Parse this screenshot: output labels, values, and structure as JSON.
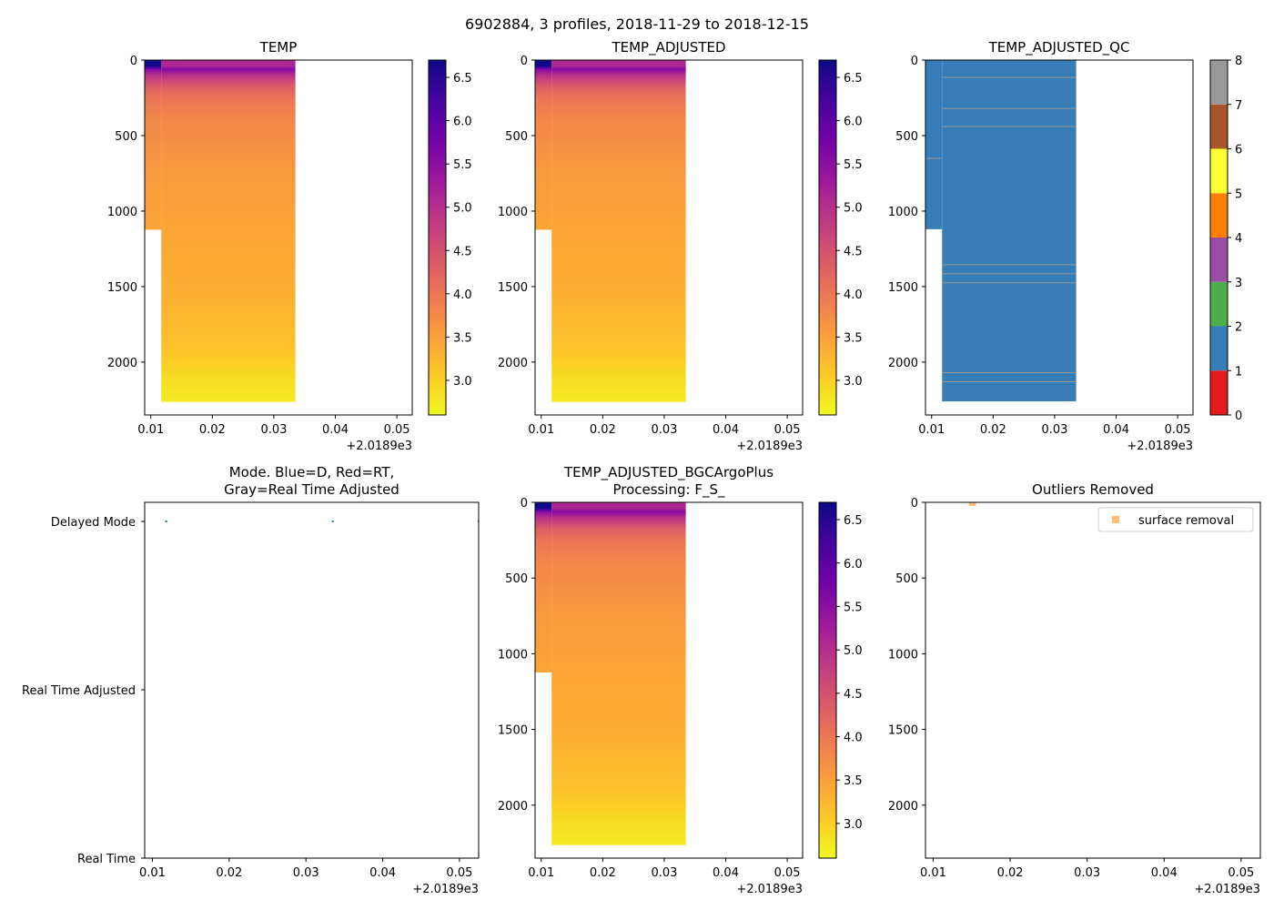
{
  "figure": {
    "title": "6902884, 3 profiles, 2018-11-29 to 2018-12-15"
  },
  "colors": {
    "plasma_stops": [
      "#0d0887",
      "#46039f",
      "#7201a8",
      "#9c179e",
      "#bd3786",
      "#d8576b",
      "#ed7953",
      "#fb9f3a",
      "#fdca26",
      "#f0f921"
    ],
    "qc_colors": [
      "#e41a1c",
      "#377eb8",
      "#4daf4a",
      "#984ea3",
      "#ff7f00",
      "#ffff33",
      "#a65628",
      "#f781bf",
      "#999999"
    ],
    "qc_flag_line": "#999999",
    "mode_marker": "#1f77b4",
    "outlier_marker": "#ffbb78"
  },
  "chart_data": [
    {
      "id": "temp",
      "type": "heatmap",
      "title": "TEMP",
      "x_offset_label": "+2.0189e3",
      "xlim": [
        0.009,
        0.0525
      ],
      "xticks": [
        0.01,
        0.02,
        0.03,
        0.04,
        0.05
      ],
      "xtick_labels": [
        "0.01",
        "0.02",
        "0.03",
        "0.04",
        "0.05"
      ],
      "ylim": [
        2350,
        0
      ],
      "yticks": [
        0,
        500,
        1000,
        1500,
        2000
      ],
      "ytick_labels": [
        "0",
        "500",
        "1000",
        "1500",
        "2000"
      ],
      "profiles": [
        {
          "x": [
            0.009,
            0.0117
          ],
          "max_depth": 1120
        },
        {
          "x": [
            0.0117,
            0.0335
          ],
          "max_depth": 2260
        }
      ],
      "colorbar": {
        "cmap": "plasma_r",
        "range": [
          2.6,
          6.7
        ],
        "ticks": [
          3.0,
          3.5,
          4.0,
          4.5,
          5.0,
          5.5,
          6.0,
          6.5
        ],
        "tick_labels": [
          "3.0",
          "3.5",
          "4.0",
          "4.5",
          "5.0",
          "5.5",
          "6.0",
          "6.5"
        ]
      }
    },
    {
      "id": "temp_adjusted",
      "type": "heatmap",
      "title": "TEMP_ADJUSTED",
      "x_offset_label": "+2.0189e3",
      "xlim": [
        0.009,
        0.0525
      ],
      "xticks": [
        0.01,
        0.02,
        0.03,
        0.04,
        0.05
      ],
      "xtick_labels": [
        "0.01",
        "0.02",
        "0.03",
        "0.04",
        "0.05"
      ],
      "ylim": [
        2350,
        0
      ],
      "yticks": [
        0,
        500,
        1000,
        1500,
        2000
      ],
      "ytick_labels": [
        "0",
        "500",
        "1000",
        "1500",
        "2000"
      ],
      "profiles": [
        {
          "x": [
            0.009,
            0.0117
          ],
          "max_depth": 1120
        },
        {
          "x": [
            0.0117,
            0.0335
          ],
          "max_depth": 2260
        }
      ],
      "colorbar": {
        "cmap": "plasma_r",
        "range": [
          2.6,
          6.7
        ],
        "ticks": [
          3.0,
          3.5,
          4.0,
          4.5,
          5.0,
          5.5,
          6.0,
          6.5
        ],
        "tick_labels": [
          "3.0",
          "3.5",
          "4.0",
          "4.5",
          "5.0",
          "5.5",
          "6.0",
          "6.5"
        ]
      }
    },
    {
      "id": "temp_adjusted_qc",
      "type": "heatmap",
      "title": "TEMP_ADJUSTED_QC",
      "x_offset_label": "+2.0189e3",
      "xlim": [
        0.009,
        0.0525
      ],
      "xticks": [
        0.01,
        0.02,
        0.03,
        0.04,
        0.05
      ],
      "xtick_labels": [
        "0.01",
        "0.02",
        "0.03",
        "0.04",
        "0.05"
      ],
      "ylim": [
        2350,
        0
      ],
      "yticks": [
        0,
        500,
        1000,
        1500,
        2000
      ],
      "ytick_labels": [
        "0",
        "500",
        "1000",
        "1500",
        "2000"
      ],
      "profiles": [
        {
          "x": [
            0.009,
            0.0117
          ],
          "max_depth": 1120,
          "qc": 1,
          "flag8_depths": [
            650
          ]
        },
        {
          "x": [
            0.0117,
            0.0335
          ],
          "max_depth": 2260,
          "qc": 1,
          "flag8_depths": [
            115,
            320,
            440,
            1355,
            1415,
            1475,
            2070,
            2130
          ]
        }
      ],
      "colorbar": {
        "cmap": "qc_discrete",
        "range": [
          0,
          8
        ],
        "ticks": [
          0,
          1,
          2,
          3,
          4,
          5,
          6,
          7,
          8
        ],
        "tick_labels": [
          "0",
          "1",
          "2",
          "3",
          "4",
          "5",
          "6",
          "7",
          "8"
        ]
      }
    },
    {
      "id": "mode",
      "type": "scatter",
      "title": "Mode. Blue=D, Red=RT,\nGray=Real Time Adjusted",
      "x_offset_label": "+2.0189e3",
      "xlim": [
        0.009,
        0.0525
      ],
      "xticks": [
        0.01,
        0.02,
        0.03,
        0.04,
        0.05
      ],
      "xtick_labels": [
        "0.01",
        "0.02",
        "0.03",
        "0.04",
        "0.05"
      ],
      "ycategories": [
        "Delayed Mode",
        "Real Time Adjusted",
        "Real Time"
      ],
      "points": [
        {
          "x": 0.0118,
          "category": "Delayed Mode"
        },
        {
          "x": 0.0335,
          "category": "Delayed Mode"
        },
        {
          "x": 0.0525,
          "category": "Delayed Mode"
        }
      ]
    },
    {
      "id": "temp_adjusted_bgc",
      "type": "heatmap",
      "title": "TEMP_ADJUSTED_BGCArgoPlus\nProcessing: F_S_",
      "x_offset_label": "+2.0189e3",
      "xlim": [
        0.009,
        0.0525
      ],
      "xticks": [
        0.01,
        0.02,
        0.03,
        0.04,
        0.05
      ],
      "xtick_labels": [
        "0.01",
        "0.02",
        "0.03",
        "0.04",
        "0.05"
      ],
      "ylim": [
        2350,
        0
      ],
      "yticks": [
        0,
        500,
        1000,
        1500,
        2000
      ],
      "ytick_labels": [
        "0",
        "500",
        "1000",
        "1500",
        "2000"
      ],
      "profiles": [
        {
          "x": [
            0.009,
            0.0117
          ],
          "max_depth": 1120
        },
        {
          "x": [
            0.0117,
            0.0335
          ],
          "max_depth": 2260
        }
      ],
      "colorbar": {
        "cmap": "plasma_r",
        "range": [
          2.6,
          6.7
        ],
        "ticks": [
          3.0,
          3.5,
          4.0,
          4.5,
          5.0,
          5.5,
          6.0,
          6.5
        ],
        "tick_labels": [
          "3.0",
          "3.5",
          "4.0",
          "4.5",
          "5.0",
          "5.5",
          "6.0",
          "6.5"
        ]
      }
    },
    {
      "id": "outliers",
      "type": "scatter",
      "title": "Outliers Removed",
      "x_offset_label": "+2.0189e3",
      "xlim": [
        0.009,
        0.0525
      ],
      "xticks": [
        0.01,
        0.02,
        0.03,
        0.04,
        0.05
      ],
      "xtick_labels": [
        "0.01",
        "0.02",
        "0.03",
        "0.04",
        "0.05"
      ],
      "ylim": [
        2350,
        0
      ],
      "yticks": [
        0,
        500,
        1000,
        1500,
        2000
      ],
      "ytick_labels": [
        "0",
        "500",
        "1000",
        "1500",
        "2000"
      ],
      "legend": {
        "entries": [
          "surface removal"
        ],
        "placement": "top-right"
      },
      "points": [
        {
          "x": 0.0151,
          "y": 0,
          "series": "surface removal"
        }
      ]
    }
  ]
}
